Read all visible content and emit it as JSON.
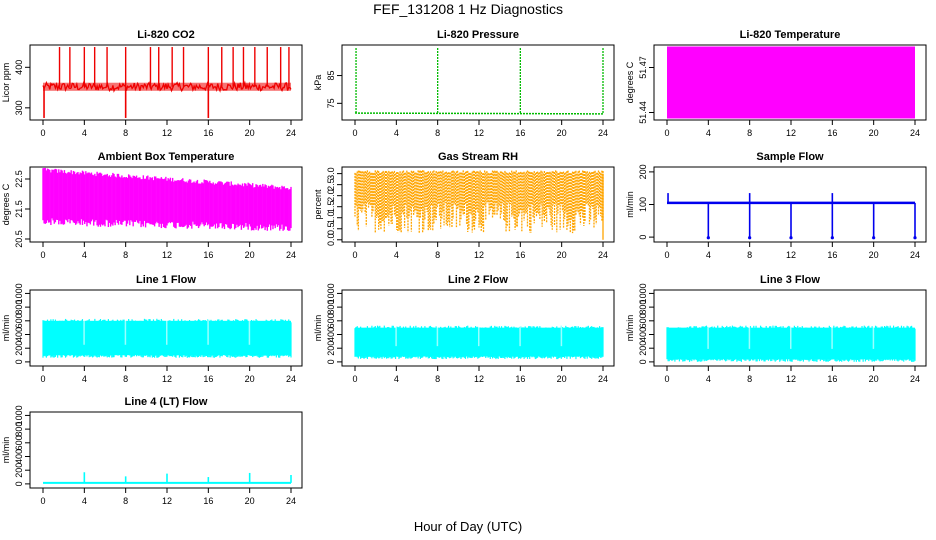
{
  "figure": {
    "title": "FEF_131208  1 Hz Diagnostics",
    "xlabel": "Hour of Day (UTC)"
  },
  "chart_data": [
    {
      "type": "line",
      "title": "Li-820 CO2",
      "ylabel": "Licor ppm",
      "color": "#ee0000",
      "xlim": [
        0,
        24
      ],
      "ylim": [
        270,
        455
      ],
      "xticks": [
        "0",
        "4",
        "8",
        "12",
        "16",
        "20",
        "24"
      ],
      "yticks": [
        "300",
        "400"
      ],
      "yticklabels": [
        "300",
        "400"
      ],
      "series": [
        {
          "baseline": 352,
          "band": [
            342,
            362
          ],
          "spikes_high_x": [
            1.6,
            2.6,
            4.0,
            5.0,
            6.2,
            8.0,
            10.4,
            11.2,
            12.5,
            13.6,
            16.0,
            17.3,
            18.4,
            19.4,
            20.5,
            21.7,
            23.0,
            23.8
          ],
          "spike_high": 450,
          "spikes_low_x": [
            0.1,
            8.0,
            16.0
          ],
          "spike_low": 275
        }
      ]
    },
    {
      "type": "line",
      "title": "Li-820 Pressure",
      "ylabel": "kPa",
      "color": "#00bb00",
      "xlim": [
        0,
        24
      ],
      "ylim": [
        69,
        96
      ],
      "xticks": [
        "0",
        "4",
        "8",
        "12",
        "16",
        "20",
        "24"
      ],
      "yticks": [
        "75",
        "85"
      ],
      "yticklabels": [
        "75",
        "85"
      ],
      "series": [
        {
          "baseline": 71.5,
          "spikes_x": [
            0.1,
            8.0,
            16.0,
            24.0
          ],
          "spike_high": 95
        }
      ]
    },
    {
      "type": "area",
      "title": "Li-820 Temperature",
      "ylabel": "degrees C",
      "color": "#ff00ff",
      "xlim": [
        0,
        24
      ],
      "ylim": [
        51.435,
        51.485
      ],
      "xticks": [
        "0",
        "4",
        "8",
        "12",
        "16",
        "20",
        "24"
      ],
      "yticks": [
        "51.44",
        "51.47"
      ],
      "yticklabels": [
        "51.44",
        "51.47"
      ],
      "series": [
        {
          "band": [
            51.436,
            51.484
          ]
        }
      ]
    },
    {
      "type": "area",
      "title": "Ambient Box Temperature",
      "ylabel": "degrees C",
      "color": "#ff00ff",
      "xlim": [
        0,
        24
      ],
      "ylim": [
        20.4,
        22.9
      ],
      "xticks": [
        "0",
        "4",
        "8",
        "12",
        "16",
        "20",
        "24"
      ],
      "yticks": [
        "20.5",
        "21.5",
        "22.5"
      ],
      "yticklabels": [
        "20.5",
        "21.5",
        "22.5"
      ],
      "series": [
        {
          "band_start": [
            21.2,
            22.8
          ],
          "band_end": [
            21.0,
            22.2
          ]
        }
      ]
    },
    {
      "type": "area",
      "title": "Gas Stream RH",
      "ylabel": "percent",
      "color": "#ffa500",
      "xlim": [
        0,
        24
      ],
      "ylim": [
        -0.1,
        3.3
      ],
      "xticks": [
        "0",
        "4",
        "8",
        "12",
        "16",
        "20",
        "24"
      ],
      "yticks": [
        "0.0",
        "0.5",
        "1.0",
        "1.5",
        "2.0",
        "2.5",
        "3.0"
      ],
      "yticklabels": [
        "0.0",
        "0.5",
        "1.0",
        "1.5",
        "2.0",
        "2.5",
        "3.0"
      ],
      "series": [
        {
          "band": [
            0.3,
            3.15
          ]
        }
      ]
    },
    {
      "type": "line",
      "title": "Sample Flow",
      "ylabel": "ml/min",
      "color": "#0000ee",
      "xlim": [
        0,
        24
      ],
      "ylim": [
        -15,
        215
      ],
      "xticks": [
        "0",
        "4",
        "8",
        "12",
        "16",
        "20",
        "24"
      ],
      "yticks": [
        "0",
        "100",
        "200"
      ],
      "yticklabels": [
        "0",
        "100",
        "200"
      ],
      "series": [
        {
          "baseline": 105,
          "dips_x": [
            4.0,
            8.0,
            12.0,
            16.0,
            20.0,
            24.0
          ],
          "dip_low": -2,
          "spikes_x": [
            0.1,
            8.0,
            16.0
          ],
          "spike_high": 135
        }
      ]
    },
    {
      "type": "area",
      "title": "Line 1 Flow",
      "ylabel": "ml/min",
      "color": "#00ffff",
      "xlim": [
        0,
        24
      ],
      "ylim": [
        -60,
        1050
      ],
      "xticks": [
        "0",
        "4",
        "8",
        "12",
        "16",
        "20",
        "24"
      ],
      "yticks": [
        "0",
        "200",
        "400",
        "600",
        "800",
        "1000"
      ],
      "yticklabels": [
        "0",
        "200",
        "400",
        "600",
        "800",
        "1000"
      ],
      "series": [
        {
          "band": [
            100,
            600
          ]
        }
      ]
    },
    {
      "type": "area",
      "title": "Line 2 Flow",
      "ylabel": "ml/min",
      "color": "#00ffff",
      "xlim": [
        0,
        24
      ],
      "ylim": [
        -60,
        1050
      ],
      "xticks": [
        "0",
        "4",
        "8",
        "12",
        "16",
        "20",
        "24"
      ],
      "yticks": [
        "0",
        "200",
        "400",
        "600",
        "800",
        "1000"
      ],
      "yticklabels": [
        "0",
        "200",
        "400",
        "600",
        "800",
        "1000"
      ],
      "series": [
        {
          "band": [
            80,
            500
          ]
        }
      ]
    },
    {
      "type": "area",
      "title": "Line 3 Flow",
      "ylabel": "ml/min",
      "color": "#00ffff",
      "xlim": [
        0,
        24
      ],
      "ylim": [
        -60,
        1050
      ],
      "xticks": [
        "0",
        "4",
        "8",
        "12",
        "16",
        "20",
        "24"
      ],
      "yticks": [
        "0",
        "200",
        "400",
        "600",
        "800",
        "1000"
      ],
      "yticklabels": [
        "0",
        "200",
        "400",
        "600",
        "800",
        "1000"
      ],
      "series": [
        {
          "band": [
            40,
            500
          ]
        }
      ]
    },
    {
      "type": "line",
      "title": "Line 4 (LT) Flow",
      "ylabel": "ml/min",
      "color": "#00ffff",
      "xlim": [
        0,
        24
      ],
      "ylim": [
        -60,
        1050
      ],
      "xticks": [
        "0",
        "4",
        "8",
        "12",
        "16",
        "20",
        "24"
      ],
      "yticks": [
        "0",
        "200",
        "400",
        "600",
        "800",
        "1000"
      ],
      "yticklabels": [
        "0",
        "200",
        "400",
        "600",
        "800",
        "1000"
      ],
      "series": [
        {
          "baseline": 15,
          "spikes_x": [
            4.0,
            8.0,
            12.0,
            16.0,
            20.0,
            24.0
          ],
          "spike_heights": [
            170,
            110,
            150,
            100,
            160,
            130
          ]
        }
      ]
    }
  ]
}
